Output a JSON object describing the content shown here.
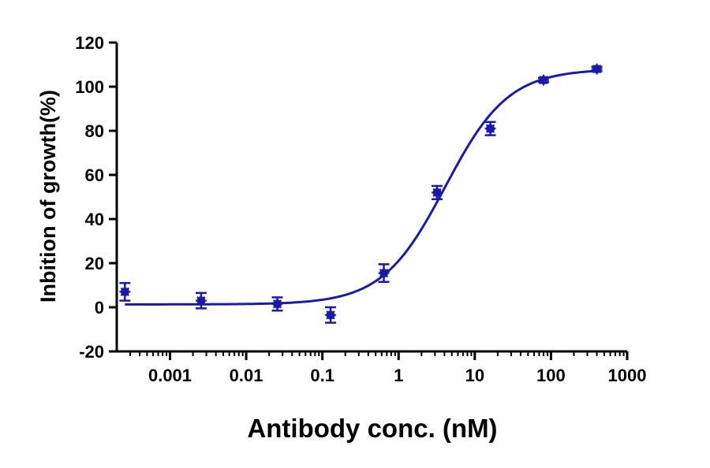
{
  "chart_data": {
    "type": "scatter",
    "title": "",
    "xlabel": "Antibody conc. (nM)",
    "ylabel": "Inbition of growth(%)",
    "x_scale": "log",
    "xlim": [
      0.0002,
      1000
    ],
    "ylim": [
      -20,
      120
    ],
    "x_ticks": [
      0.001,
      0.01,
      0.1,
      1,
      10,
      100,
      1000
    ],
    "x_tick_labels": [
      "0.001",
      "0.01",
      "0.1",
      "1",
      "10",
      "100",
      "1000"
    ],
    "y_ticks": [
      -20,
      0,
      20,
      40,
      60,
      80,
      100,
      120
    ],
    "y_tick_labels": [
      "-20",
      "0",
      "20",
      "40",
      "60",
      "80",
      "100",
      "120"
    ],
    "grid": false,
    "legend": "none",
    "color": "#1a1aa6",
    "series": [
      {
        "kind": "points_with_error",
        "x": [
          0.000256,
          0.00256,
          0.0256,
          0.128,
          0.64,
          3.2,
          16,
          80,
          400
        ],
        "y": [
          7,
          3,
          1.5,
          -3.5,
          15.5,
          52,
          81,
          103,
          108
        ],
        "error": [
          4,
          3.5,
          3,
          3.5,
          4,
          3,
          3,
          1,
          1
        ]
      },
      {
        "kind": "fitted_curve",
        "model": "4PL",
        "bottom": 1.3,
        "top": 108,
        "ec50": 4.1,
        "hill": 1.05
      }
    ]
  }
}
